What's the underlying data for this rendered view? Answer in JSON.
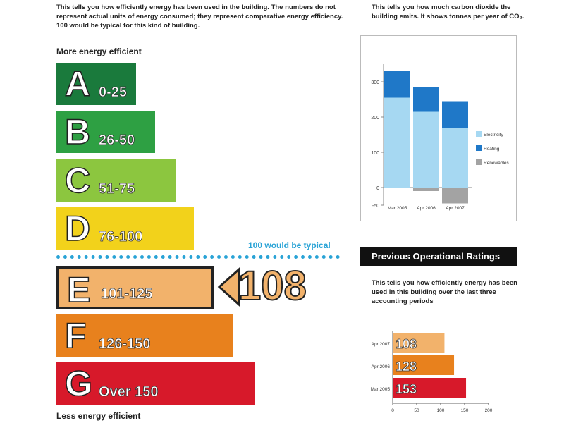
{
  "intro_text": "This tells you how efficiently energy has been used in the building. The numbers do not represent actual units of energy consumed; they represent comparative energy efficiency. 100 would be typical for this kind of building.",
  "more_efficient_label": "More energy efficient",
  "less_efficient_label": "Less energy efficient",
  "typical_label": "100 would be typical",
  "rating_value": "108",
  "bands": [
    {
      "letter": "A",
      "range": "0-25",
      "color": "#1a7a3c"
    },
    {
      "letter": "B",
      "range": "26-50",
      "color": "#2ea043"
    },
    {
      "letter": "C",
      "range": "51-75",
      "color": "#8cc63f"
    },
    {
      "letter": "D",
      "range": "76-100",
      "color": "#f2d21b"
    },
    {
      "letter": "E",
      "range": "101-125",
      "color": "#f2b26b"
    },
    {
      "letter": "F",
      "range": "126-150",
      "color": "#e8811d"
    },
    {
      "letter": "G",
      "range": "Over 150",
      "color": "#d7192a"
    }
  ],
  "co2_caption": "This tells you how much carbon dioxide the building emits. It shows tonnes per year of CO₂.",
  "previous_title": "Previous Operational Ratings",
  "previous_caption": "This tells you how efficiently energy has been used in this building over the last three accounting periods",
  "chart_data": [
    {
      "type": "bar",
      "stacked": true,
      "categories": [
        "Mar 2005",
        "Apr 2006",
        "Apr 2007"
      ],
      "series": [
        {
          "name": "Electricity",
          "values": [
            255,
            215,
            170
          ],
          "color": "#a6d8f2"
        },
        {
          "name": "Heating",
          "values": [
            77,
            70,
            75
          ],
          "color": "#1f78c8"
        },
        {
          "name": "Renewables",
          "values": [
            0,
            -10,
            -45
          ],
          "color": "#a3a3a3"
        }
      ],
      "yticks": [
        -50,
        0,
        100,
        200,
        300
      ],
      "ylim": [
        -50,
        350
      ],
      "legend_position": "right"
    },
    {
      "type": "bar",
      "orientation": "horizontal",
      "categories": [
        "Apr 2007",
        "Apr 2006",
        "Mar 2005"
      ],
      "values": [
        108,
        128,
        153
      ],
      "bar_colors": [
        "#f2b26b",
        "#e8811d",
        "#d7192a"
      ],
      "xticks": [
        0,
        50,
        100,
        150,
        200
      ],
      "xlim": [
        0,
        200
      ]
    }
  ]
}
